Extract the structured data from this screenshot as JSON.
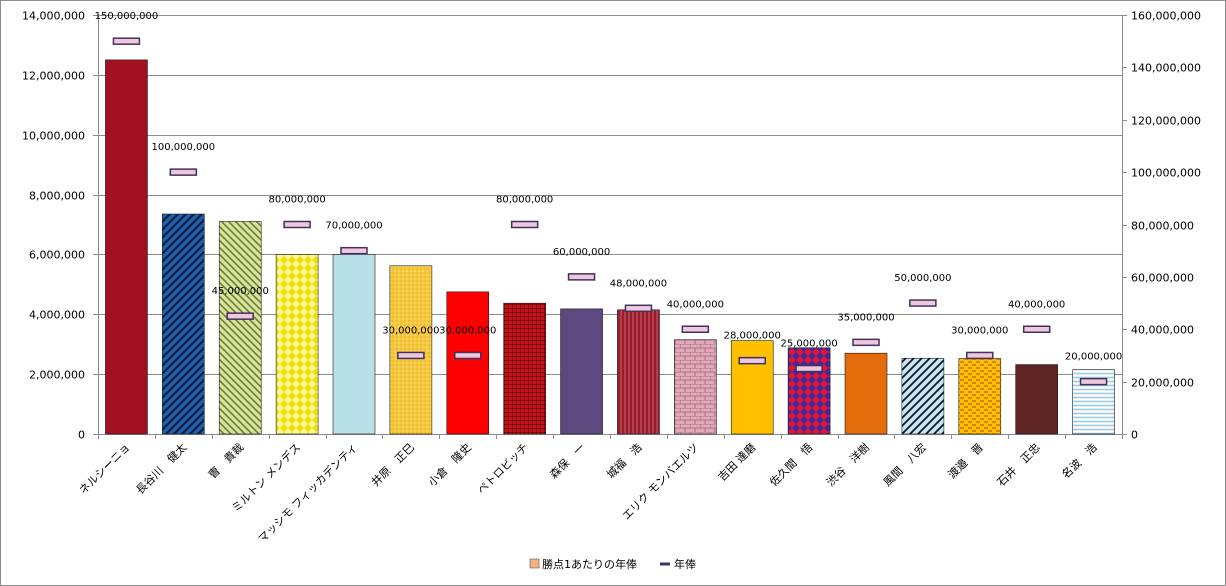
{
  "chart_data": {
    "type": "bar",
    "categories": [
      "ネルシーニョ",
      "長谷川　健太",
      "曺　貴裁",
      "ミルトン メンデス",
      "マッシモ フィッカデンティ",
      "井原　正巳",
      "小倉　隆史",
      "ペトロビッチ",
      "森保　一",
      "城福　浩",
      "エリク モンバエルツ",
      "吉田 達磨",
      "佐久間　悟",
      "渋谷　洋樹",
      "風間　八宏",
      "渡邉　晋",
      "石井　正忠",
      "名波　浩"
    ],
    "series": [
      {
        "name": "勝点1あたりの年俸",
        "type": "bar",
        "axis": "left",
        "values": [
          12500000,
          7350000,
          7100000,
          6000000,
          6000000,
          5620000,
          4750000,
          4370000,
          4180000,
          4150000,
          3150000,
          3120000,
          2880000,
          2700000,
          2530000,
          2520000,
          2320000,
          2150000
        ],
        "colors": [
          "#a31022",
          "#1f5fae",
          "#c8d87a",
          "#f3ee2e",
          "#b9dfe8",
          "#f3c63a",
          "#ff0000",
          "#b0141a",
          "#5d4880",
          "#9a1c2b",
          "#e0a3b5",
          "#ffc000",
          "#e8142c",
          "#e46c0a",
          "#bfe1f2",
          "#ffc000",
          "#5f2424",
          "#dbeef4"
        ]
      },
      {
        "name": "年俸",
        "type": "marker",
        "axis": "right",
        "values": [
          150000000,
          100000000,
          45000000,
          80000000,
          70000000,
          30000000,
          30000000,
          80000000,
          60000000,
          48000000,
          40000000,
          28000000,
          25000000,
          35000000,
          50000000,
          30000000,
          40000000,
          20000000
        ],
        "labels": [
          "150,000,000",
          "100,000,000",
          "45,000,000",
          "80,000,000",
          "70,000,000",
          "30,000,000",
          "30,000,000",
          "80,000,000",
          "60,000,000",
          "48,000,000",
          "40,000,000",
          "28,000,000",
          "25,000,000",
          "35,000,000",
          "50,000,000",
          "30,000,000",
          "40,000,000",
          "20,000,000"
        ],
        "color": "#f0c8dc"
      }
    ],
    "y_left": {
      "min": 0,
      "max": 14000000,
      "step": 2000000,
      "ticks": [
        "0",
        "2,000,000",
        "4,000,000",
        "6,000,000",
        "8,000,000",
        "10,000,000",
        "12,000,000",
        "14,000,000"
      ]
    },
    "y_right": {
      "min": 0,
      "max": 160000000,
      "step": 20000000,
      "ticks": [
        "0",
        "20,000,000",
        "40,000,000",
        "60,000,000",
        "80,000,000",
        "100,000,000",
        "120,000,000",
        "140,000,000",
        "160,000,000"
      ]
    },
    "grid": true,
    "legend": {
      "position": "bottom-center",
      "items": [
        {
          "label": "勝点1あたりの年俸",
          "color": "#f4b183",
          "shape": "square"
        },
        {
          "label": "年俸",
          "color": "#3f3160",
          "shape": "line"
        }
      ]
    }
  }
}
